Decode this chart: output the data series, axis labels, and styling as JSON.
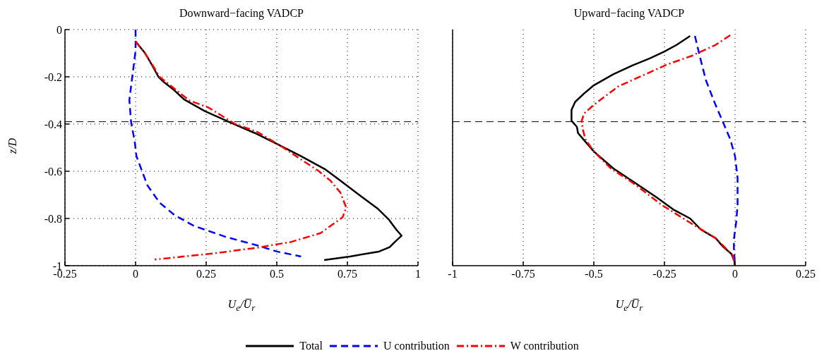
{
  "chart_data": [
    {
      "type": "line",
      "title": "Downward−facing VADCP",
      "xlabel": "U$_{e}$/U̅$_{r}$",
      "ylabel": "z/D",
      "xlim": [
        -0.25,
        1
      ],
      "xticks": [
        -0.25,
        0,
        0.25,
        0.5,
        0.75,
        1
      ],
      "ylim": [
        -1,
        0
      ],
      "yticks": [
        -1,
        -0.8,
        -0.6,
        -0.4,
        -0.2,
        0
      ],
      "grid": true,
      "legend": "bottom",
      "ref_lines": [
        {
          "axis": "y",
          "value": -0.39,
          "color": "#000000",
          "line_style": "dashed"
        }
      ],
      "series": [
        {
          "name": "Total",
          "color": "#000000",
          "line_style": "solid",
          "x": [
            0,
            0.034,
            0.058,
            0.081,
            0.098,
            0.137,
            0.172,
            0.245,
            0.34,
            0.422,
            0.5,
            0.586,
            0.673,
            0.72,
            0.794,
            0.858,
            0.897,
            0.923,
            0.942,
            0.914,
            0.9,
            0.862,
            0.759,
            0.668
          ],
          "values": [
            -0.05,
            -0.1,
            -0.15,
            -0.2,
            -0.22,
            -0.257,
            -0.296,
            -0.345,
            -0.396,
            -0.438,
            -0.484,
            -0.536,
            -0.593,
            -0.635,
            -0.702,
            -0.759,
            -0.805,
            -0.847,
            -0.873,
            -0.904,
            -0.921,
            -0.94,
            -0.961,
            -0.976
          ]
        },
        {
          "name": "U contribution",
          "color": "#0000ff",
          "line_style": "dashed",
          "x": [
            0,
            0,
            0,
            -0.01,
            -0.022,
            -0.016,
            -0.003,
            0.003,
            0.042,
            0.085,
            0.137,
            0.206,
            0.319,
            0.431,
            0.5,
            0.586
          ],
          "values": [
            0,
            -0.05,
            -0.09,
            -0.184,
            -0.298,
            -0.391,
            -0.474,
            -0.536,
            -0.66,
            -0.733,
            -0.785,
            -0.831,
            -0.878,
            -0.914,
            -0.94,
            -0.961
          ]
        },
        {
          "name": "W contribution",
          "color": "#ff0000",
          "line_style": "dashdot",
          "x": [
            0,
            0.033,
            0.06,
            0.085,
            0.19,
            0.258,
            0.353,
            0.431,
            0.517,
            0.586,
            0.647,
            0.69,
            0.725,
            0.746,
            0.733,
            0.655,
            0.552,
            0.431,
            0.275,
            0.068
          ],
          "values": [
            -0.05,
            -0.1,
            -0.15,
            -0.2,
            -0.3,
            -0.33,
            -0.4,
            -0.433,
            -0.495,
            -0.55,
            -0.598,
            -0.64,
            -0.69,
            -0.754,
            -0.795,
            -0.862,
            -0.899,
            -0.924,
            -0.948,
            -0.974
          ]
        }
      ]
    },
    {
      "type": "line",
      "title": "Upward−facing VADCP",
      "xlabel": "U$_{e}$/U̅$_{r}$",
      "xlim": [
        -1,
        0.25
      ],
      "xticks": [
        -1,
        -0.75,
        -0.5,
        -0.25,
        0,
        0.25
      ],
      "ylim": [
        -1,
        0
      ],
      "yticks": [
        -1,
        -0.8,
        -0.6,
        -0.4,
        -0.2,
        0
      ],
      "tick_labels": "x",
      "grid": true,
      "ref_lines": [
        {
          "axis": "y",
          "value": -0.39,
          "color": "#000000",
          "line_style": "dashed"
        }
      ],
      "series": [
        {
          "color": "#000000",
          "line_style": "solid",
          "x": [
            -0.159,
            -0.207,
            -0.25,
            -0.302,
            -0.362,
            -0.431,
            -0.5,
            -0.531,
            -0.566,
            -0.579,
            -0.579,
            -0.56,
            -0.556,
            -0.534,
            -0.5,
            -0.431,
            -0.353,
            -0.276,
            -0.216,
            -0.159,
            -0.121,
            -0.069,
            -0.043,
            -0.013,
            -0.002,
            -0.002
          ],
          "values": [
            -0.027,
            -0.065,
            -0.093,
            -0.122,
            -0.151,
            -0.189,
            -0.236,
            -0.267,
            -0.306,
            -0.34,
            -0.386,
            -0.412,
            -0.438,
            -0.469,
            -0.516,
            -0.588,
            -0.65,
            -0.712,
            -0.764,
            -0.8,
            -0.847,
            -0.883,
            -0.919,
            -0.95,
            -0.981,
            -0.997
          ]
        },
        {
          "color": "#0000ff",
          "line_style": "dashed",
          "x": [
            -0.142,
            -0.125,
            -0.103,
            -0.069,
            -0.043,
            -0.017,
            0,
            0.009,
            0.009,
            0.004,
            -0.004,
            -0.004,
            0
          ],
          "values": [
            -0.027,
            -0.112,
            -0.215,
            -0.319,
            -0.391,
            -0.464,
            -0.536,
            -0.629,
            -0.743,
            -0.816,
            -0.888,
            -0.93,
            -1
          ]
        },
        {
          "color": "#ff0000",
          "line_style": "dashdot",
          "x": [
            -0.017,
            -0.069,
            -0.155,
            -0.241,
            -0.328,
            -0.414,
            -0.5,
            -0.534,
            -0.543,
            -0.539,
            -0.53,
            -0.5,
            -0.44,
            -0.361,
            -0.259,
            -0.155,
            -0.069,
            -0.009,
            0
          ],
          "values": [
            -0.024,
            -0.065,
            -0.112,
            -0.148,
            -0.195,
            -0.241,
            -0.319,
            -0.355,
            -0.386,
            -0.422,
            -0.464,
            -0.516,
            -0.588,
            -0.65,
            -0.743,
            -0.821,
            -0.883,
            -0.955,
            -1
          ]
        }
      ]
    }
  ]
}
